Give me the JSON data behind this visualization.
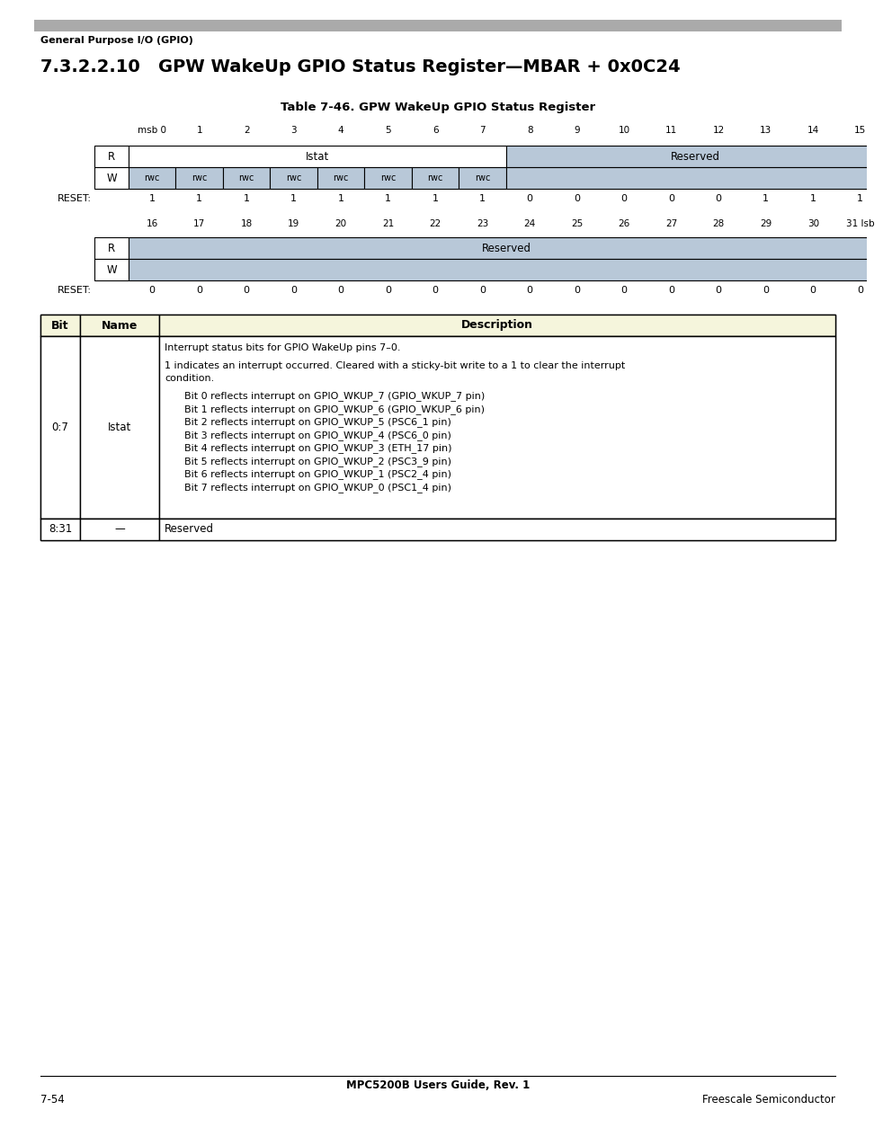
{
  "page_bg": "#ffffff",
  "header_bar_color": "#aaaaaa",
  "header_text": "General Purpose I/O (GPIO)",
  "section_title": "7.3.2.2.10   GPW WakeUp GPIO Status Register—MBAR + 0x0C24",
  "table_title": "Table 7-46. GPW WakeUp GPIO Status Register",
  "reg_reserved_color": "#b8c8d8",
  "reg_rwc_color": "#b8c8d8",
  "bit_col_header_bg": "#f5f5dc",
  "footer_center": "MPC5200B Users Guide, Rev. 1",
  "footer_left": "7-54",
  "footer_right": "Freescale Semiconductor",
  "row1_bits_top": [
    "msb 0",
    "1",
    "2",
    "3",
    "4",
    "5",
    "6",
    "7",
    "8",
    "9",
    "10",
    "11",
    "12",
    "13",
    "14",
    "15"
  ],
  "row1_reset": [
    "1",
    "1",
    "1",
    "1",
    "1",
    "1",
    "1",
    "1",
    "0",
    "0",
    "0",
    "0",
    "0",
    "1",
    "1",
    "1"
  ],
  "row2_bits_top": [
    "16",
    "17",
    "18",
    "19",
    "20",
    "21",
    "22",
    "23",
    "24",
    "25",
    "26",
    "27",
    "28",
    "29",
    "30",
    "31 lsb"
  ],
  "row2_reset": [
    "0",
    "0",
    "0",
    "0",
    "0",
    "0",
    "0",
    "0",
    "0",
    "0",
    "0",
    "0",
    "0",
    "0",
    "0",
    "0"
  ],
  "bit_rows": [
    {
      "bit": "0:7",
      "name": "Istat",
      "desc_lines": [
        {
          "text": "Interrupt status bits for GPIO WakeUp pins 7–0.",
          "indent": 0
        },
        {
          "text": "",
          "indent": 0
        },
        {
          "text": "1 indicates an interrupt occurred. Cleared with a sticky-bit write to a 1 to clear the interrupt",
          "indent": 0
        },
        {
          "text": "condition.",
          "indent": 0
        },
        {
          "text": "",
          "indent": 0
        },
        {
          "text": "Bit 0 reflects interrupt on GPIO_WKUP_7 (GPIO_WKUP_7 pin)",
          "indent": 1
        },
        {
          "text": "Bit 1 reflects interrupt on GPIO_WKUP_6 (GPIO_WKUP_6 pin)",
          "indent": 1
        },
        {
          "text": "Bit 2 reflects interrupt on GPIO_WKUP_5 (PSC6_1 pin)",
          "indent": 1
        },
        {
          "text": "Bit 3 reflects interrupt on GPIO_WKUP_4 (PSC6_0 pin)",
          "indent": 1
        },
        {
          "text": "Bit 4 reflects interrupt on GPIO_WKUP_3 (ETH_17 pin)",
          "indent": 1
        },
        {
          "text": "Bit 5 reflects interrupt on GPIO_WKUP_2 (PSC3_9 pin)",
          "indent": 1
        },
        {
          "text": "Bit 6 reflects interrupt on GPIO_WKUP_1 (PSC2_4 pin)",
          "indent": 1
        },
        {
          "text": "Bit 7 reflects interrupt on GPIO_WKUP_0 (PSC1_4 pin)",
          "indent": 1
        }
      ]
    },
    {
      "bit": "8:31",
      "name": "—",
      "desc_lines": [
        {
          "text": "Reserved",
          "indent": 0
        }
      ]
    }
  ]
}
